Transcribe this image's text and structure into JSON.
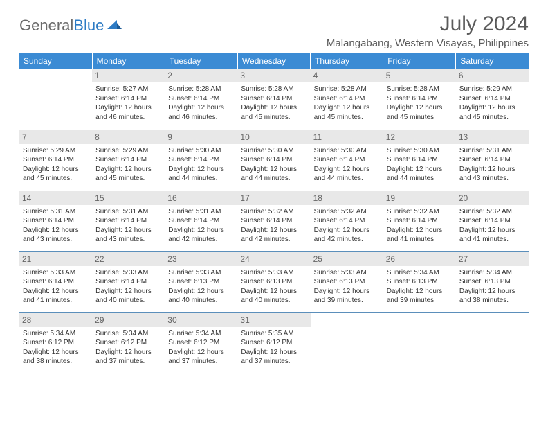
{
  "brand": {
    "part1": "General",
    "part2": "Blue"
  },
  "title": "July 2024",
  "location": "Malangabang, Western Visayas, Philippines",
  "colors": {
    "header_bg": "#3b8bd4",
    "header_text": "#ffffff",
    "day_num_bg": "#e8e8e8",
    "day_num_text": "#666666",
    "cell_border": "#5b8fbb",
    "body_text": "#333333",
    "title_text": "#5a5a5a",
    "logo_gray": "#6b6b6b",
    "logo_blue": "#2d7bc4"
  },
  "days_of_week": [
    "Sunday",
    "Monday",
    "Tuesday",
    "Wednesday",
    "Thursday",
    "Friday",
    "Saturday"
  ],
  "weeks": [
    [
      {
        "n": "",
        "sr": "",
        "ss": "",
        "dl": ""
      },
      {
        "n": "1",
        "sr": "Sunrise: 5:27 AM",
        "ss": "Sunset: 6:14 PM",
        "dl": "Daylight: 12 hours and 46 minutes."
      },
      {
        "n": "2",
        "sr": "Sunrise: 5:28 AM",
        "ss": "Sunset: 6:14 PM",
        "dl": "Daylight: 12 hours and 46 minutes."
      },
      {
        "n": "3",
        "sr": "Sunrise: 5:28 AM",
        "ss": "Sunset: 6:14 PM",
        "dl": "Daylight: 12 hours and 45 minutes."
      },
      {
        "n": "4",
        "sr": "Sunrise: 5:28 AM",
        "ss": "Sunset: 6:14 PM",
        "dl": "Daylight: 12 hours and 45 minutes."
      },
      {
        "n": "5",
        "sr": "Sunrise: 5:28 AM",
        "ss": "Sunset: 6:14 PM",
        "dl": "Daylight: 12 hours and 45 minutes."
      },
      {
        "n": "6",
        "sr": "Sunrise: 5:29 AM",
        "ss": "Sunset: 6:14 PM",
        "dl": "Daylight: 12 hours and 45 minutes."
      }
    ],
    [
      {
        "n": "7",
        "sr": "Sunrise: 5:29 AM",
        "ss": "Sunset: 6:14 PM",
        "dl": "Daylight: 12 hours and 45 minutes."
      },
      {
        "n": "8",
        "sr": "Sunrise: 5:29 AM",
        "ss": "Sunset: 6:14 PM",
        "dl": "Daylight: 12 hours and 45 minutes."
      },
      {
        "n": "9",
        "sr": "Sunrise: 5:30 AM",
        "ss": "Sunset: 6:14 PM",
        "dl": "Daylight: 12 hours and 44 minutes."
      },
      {
        "n": "10",
        "sr": "Sunrise: 5:30 AM",
        "ss": "Sunset: 6:14 PM",
        "dl": "Daylight: 12 hours and 44 minutes."
      },
      {
        "n": "11",
        "sr": "Sunrise: 5:30 AM",
        "ss": "Sunset: 6:14 PM",
        "dl": "Daylight: 12 hours and 44 minutes."
      },
      {
        "n": "12",
        "sr": "Sunrise: 5:30 AM",
        "ss": "Sunset: 6:14 PM",
        "dl": "Daylight: 12 hours and 44 minutes."
      },
      {
        "n": "13",
        "sr": "Sunrise: 5:31 AM",
        "ss": "Sunset: 6:14 PM",
        "dl": "Daylight: 12 hours and 43 minutes."
      }
    ],
    [
      {
        "n": "14",
        "sr": "Sunrise: 5:31 AM",
        "ss": "Sunset: 6:14 PM",
        "dl": "Daylight: 12 hours and 43 minutes."
      },
      {
        "n": "15",
        "sr": "Sunrise: 5:31 AM",
        "ss": "Sunset: 6:14 PM",
        "dl": "Daylight: 12 hours and 43 minutes."
      },
      {
        "n": "16",
        "sr": "Sunrise: 5:31 AM",
        "ss": "Sunset: 6:14 PM",
        "dl": "Daylight: 12 hours and 42 minutes."
      },
      {
        "n": "17",
        "sr": "Sunrise: 5:32 AM",
        "ss": "Sunset: 6:14 PM",
        "dl": "Daylight: 12 hours and 42 minutes."
      },
      {
        "n": "18",
        "sr": "Sunrise: 5:32 AM",
        "ss": "Sunset: 6:14 PM",
        "dl": "Daylight: 12 hours and 42 minutes."
      },
      {
        "n": "19",
        "sr": "Sunrise: 5:32 AM",
        "ss": "Sunset: 6:14 PM",
        "dl": "Daylight: 12 hours and 41 minutes."
      },
      {
        "n": "20",
        "sr": "Sunrise: 5:32 AM",
        "ss": "Sunset: 6:14 PM",
        "dl": "Daylight: 12 hours and 41 minutes."
      }
    ],
    [
      {
        "n": "21",
        "sr": "Sunrise: 5:33 AM",
        "ss": "Sunset: 6:14 PM",
        "dl": "Daylight: 12 hours and 41 minutes."
      },
      {
        "n": "22",
        "sr": "Sunrise: 5:33 AM",
        "ss": "Sunset: 6:14 PM",
        "dl": "Daylight: 12 hours and 40 minutes."
      },
      {
        "n": "23",
        "sr": "Sunrise: 5:33 AM",
        "ss": "Sunset: 6:13 PM",
        "dl": "Daylight: 12 hours and 40 minutes."
      },
      {
        "n": "24",
        "sr": "Sunrise: 5:33 AM",
        "ss": "Sunset: 6:13 PM",
        "dl": "Daylight: 12 hours and 40 minutes."
      },
      {
        "n": "25",
        "sr": "Sunrise: 5:33 AM",
        "ss": "Sunset: 6:13 PM",
        "dl": "Daylight: 12 hours and 39 minutes."
      },
      {
        "n": "26",
        "sr": "Sunrise: 5:34 AM",
        "ss": "Sunset: 6:13 PM",
        "dl": "Daylight: 12 hours and 39 minutes."
      },
      {
        "n": "27",
        "sr": "Sunrise: 5:34 AM",
        "ss": "Sunset: 6:13 PM",
        "dl": "Daylight: 12 hours and 38 minutes."
      }
    ],
    [
      {
        "n": "28",
        "sr": "Sunrise: 5:34 AM",
        "ss": "Sunset: 6:12 PM",
        "dl": "Daylight: 12 hours and 38 minutes."
      },
      {
        "n": "29",
        "sr": "Sunrise: 5:34 AM",
        "ss": "Sunset: 6:12 PM",
        "dl": "Daylight: 12 hours and 37 minutes."
      },
      {
        "n": "30",
        "sr": "Sunrise: 5:34 AM",
        "ss": "Sunset: 6:12 PM",
        "dl": "Daylight: 12 hours and 37 minutes."
      },
      {
        "n": "31",
        "sr": "Sunrise: 5:35 AM",
        "ss": "Sunset: 6:12 PM",
        "dl": "Daylight: 12 hours and 37 minutes."
      },
      {
        "n": "",
        "sr": "",
        "ss": "",
        "dl": ""
      },
      {
        "n": "",
        "sr": "",
        "ss": "",
        "dl": ""
      },
      {
        "n": "",
        "sr": "",
        "ss": "",
        "dl": ""
      }
    ]
  ]
}
